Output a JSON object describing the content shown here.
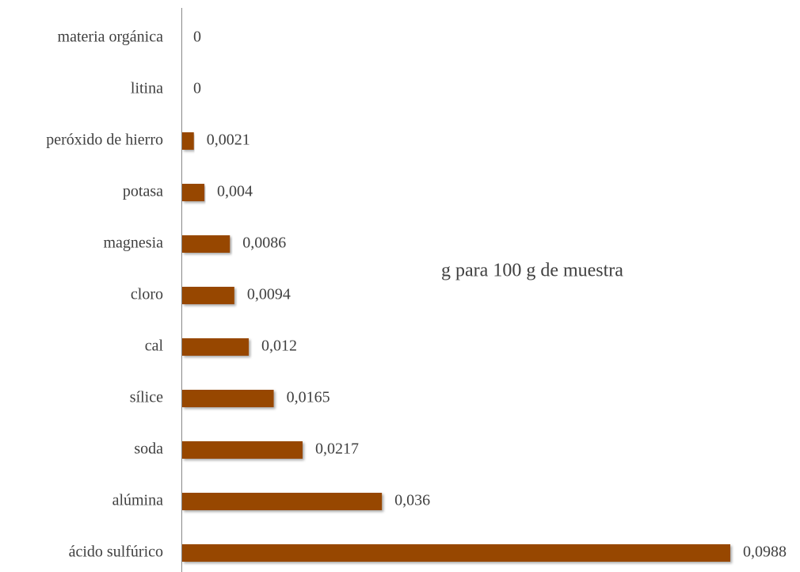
{
  "chart_data": {
    "type": "barh",
    "annotation": "g para 100 g de muestra",
    "categories": [
      "materia orgánica",
      "litina",
      "peróxido de hierro",
      "potasa",
      "magnesia",
      "cloro",
      "cal",
      "sílice",
      "soda",
      "alúmina",
      "ácido sulfúrico"
    ],
    "values": [
      0,
      0,
      0.0021,
      0.004,
      0.0086,
      0.0094,
      0.012,
      0.0165,
      0.0217,
      0.036,
      0.0988
    ],
    "value_labels": [
      "0",
      "0",
      "0,0021",
      "0,004",
      "0,0086",
      "0,0094",
      "0,012",
      "0,0165",
      "0,0217",
      "0,036",
      "0,0988"
    ],
    "color": "#974706"
  }
}
